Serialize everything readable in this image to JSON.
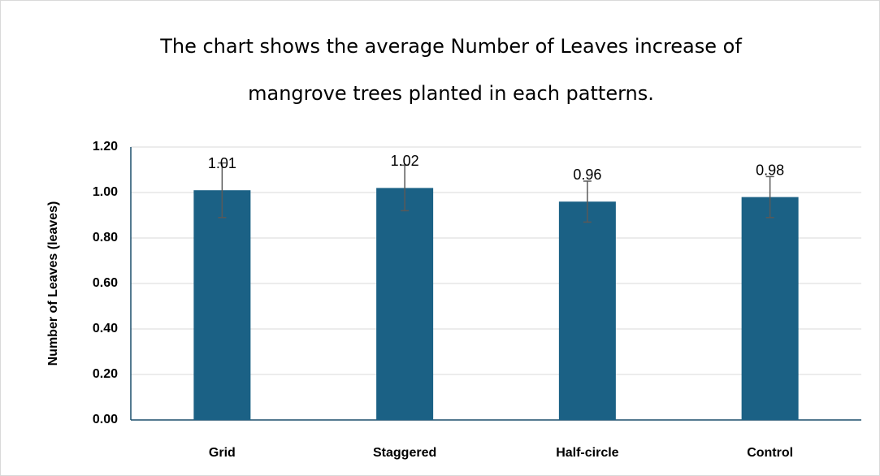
{
  "chart_data": {
    "type": "bar",
    "title": [
      "The chart shows the average Number of Leaves increase of",
      "mangrove trees planted in each patterns."
    ],
    "y_label": "Number of Leaves (leaves)",
    "categories": [
      "Grid",
      "Staggered",
      "Half-circle",
      "Control"
    ],
    "values": [
      1.01,
      1.02,
      0.96,
      0.98
    ],
    "errors": [
      0.12,
      0.1,
      0.09,
      0.09
    ],
    "color": "#1b6185",
    "ylim": [
      0,
      1.2
    ],
    "yticks": [
      {
        "value": 0,
        "label": "0.00"
      },
      {
        "value": 0.2,
        "label": "0.20"
      },
      {
        "value": 0.4,
        "label": "0.40"
      },
      {
        "value": 0.6,
        "label": "0.60"
      },
      {
        "value": 0.8,
        "label": "0.80"
      },
      {
        "value": 1.0,
        "label": "1.00"
      },
      {
        "value": 1.2,
        "label": "1.20"
      }
    ],
    "grid": true
  }
}
